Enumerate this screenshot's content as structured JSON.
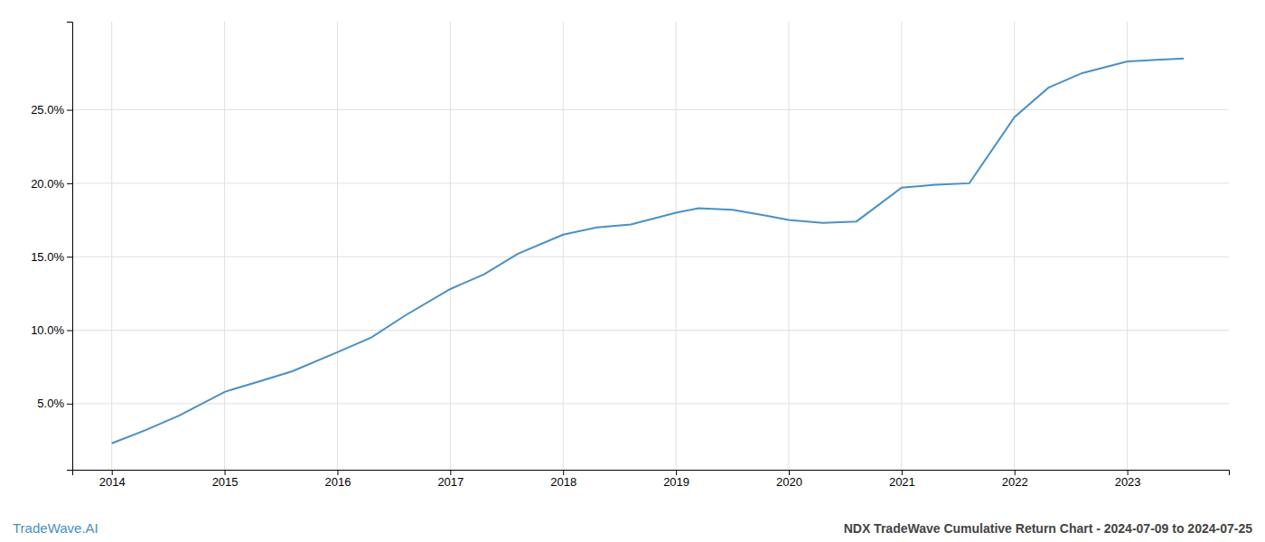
{
  "chart_data": {
    "type": "line",
    "x": [
      2014.0,
      2014.3,
      2014.6,
      2015.0,
      2015.3,
      2015.6,
      2016.0,
      2016.3,
      2016.6,
      2017.0,
      2017.3,
      2017.6,
      2018.0,
      2018.3,
      2018.6,
      2019.0,
      2019.2,
      2019.5,
      2019.8,
      2020.0,
      2020.3,
      2020.6,
      2021.0,
      2021.3,
      2021.6,
      2022.0,
      2022.3,
      2022.6,
      2023.0,
      2023.5
    ],
    "values": [
      2.3,
      3.2,
      4.2,
      5.8,
      6.5,
      7.2,
      8.5,
      9.5,
      11.0,
      12.8,
      13.8,
      15.2,
      16.5,
      17.0,
      17.2,
      18.0,
      18.3,
      18.2,
      17.8,
      17.5,
      17.3,
      17.4,
      19.7,
      19.9,
      20.0,
      24.5,
      26.5,
      27.5,
      28.3,
      28.5
    ],
    "color": "#4a90c4",
    "xlim": [
      2013.65,
      2023.9
    ],
    "xticks": [
      2014,
      2015,
      2016,
      2017,
      2018,
      2019,
      2020,
      2021,
      2022,
      2023
    ],
    "ylim": [
      0.5,
      31.0
    ],
    "yticks": [
      {
        "value": 5.0,
        "label": "5.0%"
      },
      {
        "value": 10.0,
        "label": "10.0%"
      },
      {
        "value": 15.0,
        "label": "15.0%"
      },
      {
        "value": 20.0,
        "label": "20.0%"
      },
      {
        "value": 25.0,
        "label": "25.0%"
      }
    ],
    "grid": true,
    "annotations": [
      {
        "text": "TradeWave.AI",
        "color": "#4a90c4"
      },
      {
        "text": "NDX TradeWave Cumulative Return Chart - 2024-07-09 to 2024-07-25",
        "color": "#444444"
      }
    ]
  }
}
